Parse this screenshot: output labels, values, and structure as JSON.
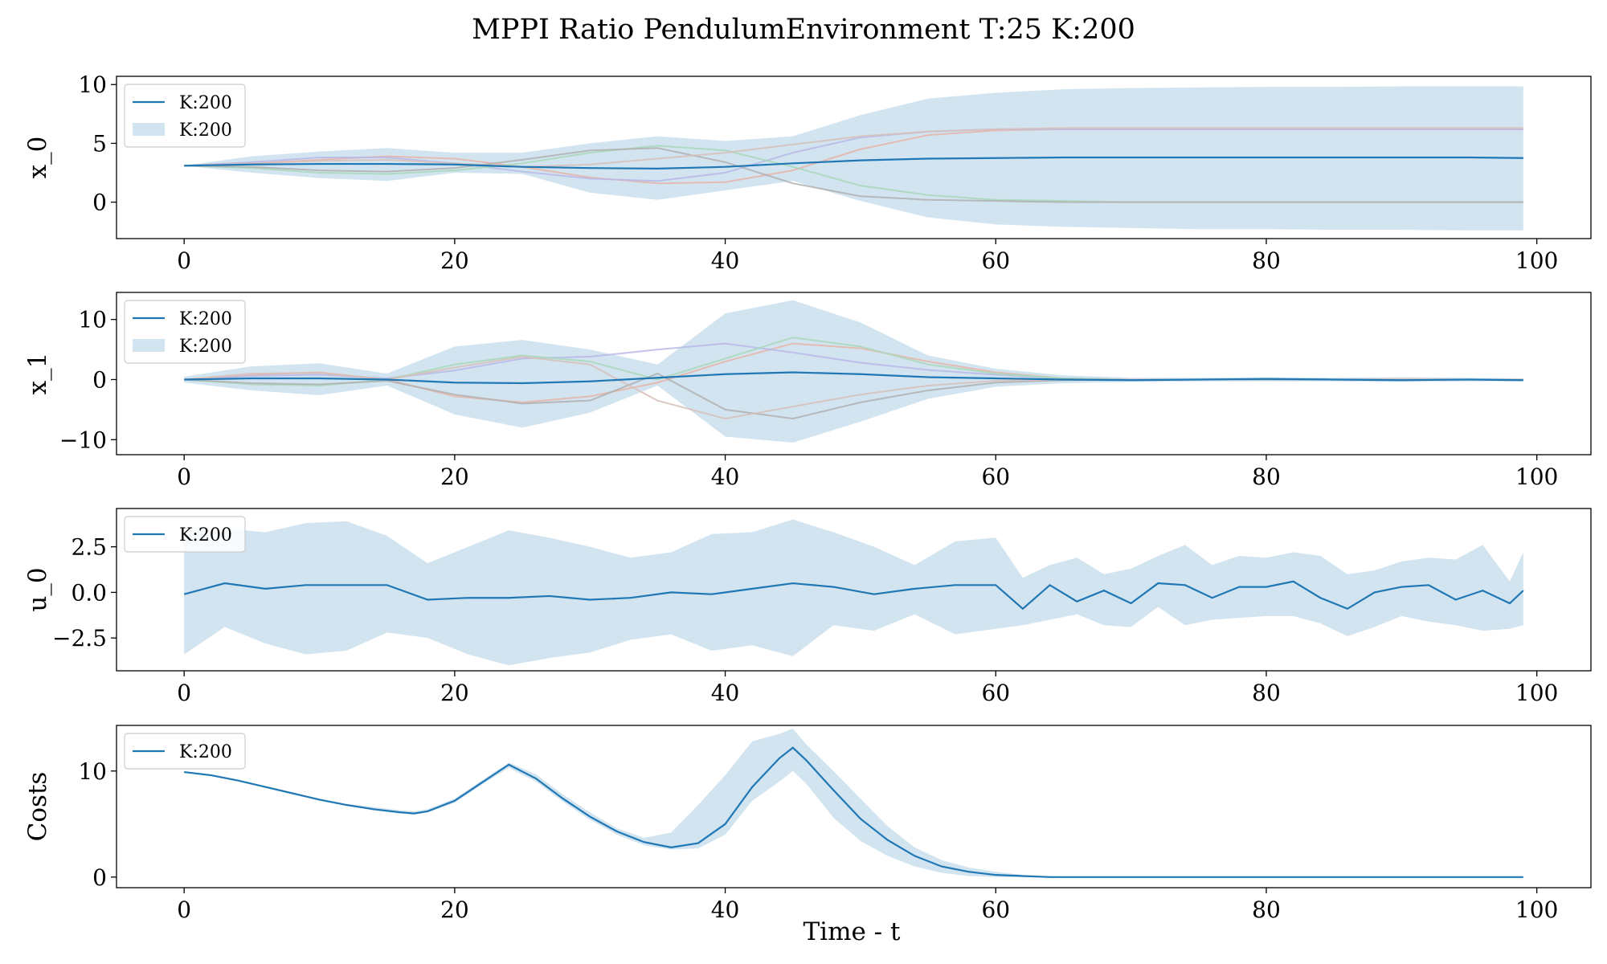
{
  "figure": {
    "title": "MPPI Ratio PendulumEnvironment T:25 K:200",
    "xlabel": "Time - t"
  },
  "colors": {
    "mean_line": "#1f77b4",
    "band": "#1f77b4",
    "trajectories": [
      "#e8b4a8",
      "#b8b8e8",
      "#a8d8b8",
      "#b0b0b0",
      "#d8c0b8"
    ]
  },
  "chart_data": [
    {
      "type": "line",
      "ylabel": "x_0",
      "xlim": [
        -5,
        104
      ],
      "ylim": [
        -3.1,
        10.7
      ],
      "xticks": [
        0,
        20,
        40,
        60,
        80,
        100
      ],
      "yticks": [
        0,
        5,
        10
      ],
      "grid": false,
      "legend": {
        "placement": "upper-left",
        "entries": [
          {
            "kind": "line",
            "label": "K:200"
          },
          {
            "kind": "band",
            "label": "K:200"
          }
        ]
      },
      "series": [
        {
          "name": "K:200",
          "x": [
            0,
            5,
            10,
            15,
            20,
            25,
            30,
            35,
            40,
            45,
            50,
            55,
            60,
            65,
            70,
            75,
            80,
            85,
            90,
            95,
            99
          ],
          "mean": [
            3.1,
            3.2,
            3.25,
            3.25,
            3.2,
            3.0,
            2.9,
            2.85,
            3.0,
            3.3,
            3.55,
            3.7,
            3.75,
            3.8,
            3.8,
            3.8,
            3.8,
            3.8,
            3.8,
            3.8,
            3.75
          ],
          "lower": [
            3.1,
            2.5,
            2.05,
            1.8,
            2.5,
            2.4,
            0.8,
            0.2,
            1.0,
            1.8,
            0.1,
            -1.3,
            -1.9,
            -2.1,
            -2.2,
            -2.3,
            -2.3,
            -2.35,
            -2.35,
            -2.4,
            -2.4
          ],
          "upper": [
            3.1,
            3.9,
            4.3,
            4.6,
            4.2,
            4.2,
            5.0,
            5.6,
            5.2,
            5.6,
            7.4,
            8.8,
            9.3,
            9.6,
            9.7,
            9.75,
            9.8,
            9.8,
            9.85,
            9.85,
            9.85
          ]
        }
      ],
      "trajectories": [
        [
          3.1,
          3.3,
          3.6,
          3.9,
          3.7,
          3.0,
          2.1,
          1.6,
          1.7,
          2.7,
          4.5,
          5.7,
          6.1,
          6.2,
          6.2,
          6.2,
          6.2,
          6.2,
          6.2,
          6.2,
          6.2
        ],
        [
          3.1,
          3.4,
          3.8,
          3.8,
          3.3,
          2.6,
          2.0,
          1.8,
          2.5,
          4.2,
          5.5,
          6.0,
          6.2,
          6.2,
          6.2,
          6.2,
          6.2,
          6.2,
          6.2,
          6.2,
          6.2
        ],
        [
          3.1,
          2.9,
          2.5,
          2.4,
          2.7,
          3.3,
          4.2,
          4.8,
          4.4,
          3.0,
          1.4,
          0.6,
          0.2,
          0.1,
          0.0,
          0.0,
          0.0,
          0.0,
          0.0,
          0.0,
          0.0
        ],
        [
          3.1,
          3.0,
          2.7,
          2.6,
          2.9,
          3.6,
          4.4,
          4.6,
          3.4,
          1.6,
          0.5,
          0.2,
          0.1,
          0.0,
          0.0,
          0.0,
          0.0,
          0.0,
          0.0,
          0.0,
          0.0
        ],
        [
          3.1,
          3.3,
          3.5,
          3.6,
          3.3,
          3.0,
          3.2,
          3.7,
          4.2,
          4.9,
          5.6,
          6.0,
          6.2,
          6.3,
          6.3,
          6.3,
          6.3,
          6.3,
          6.3,
          6.3,
          6.3
        ]
      ]
    },
    {
      "type": "line",
      "ylabel": "x_1",
      "xlim": [
        -5,
        104
      ],
      "ylim": [
        -12.5,
        14.5
      ],
      "xticks": [
        0,
        20,
        40,
        60,
        80,
        100
      ],
      "yticks": [
        -10,
        0,
        10
      ],
      "grid": false,
      "legend": {
        "placement": "upper-left",
        "entries": [
          {
            "kind": "line",
            "label": "K:200"
          },
          {
            "kind": "band",
            "label": "K:200"
          }
        ]
      },
      "series": [
        {
          "name": "K:200",
          "x": [
            0,
            5,
            10,
            15,
            20,
            25,
            30,
            35,
            40,
            45,
            50,
            55,
            60,
            65,
            70,
            75,
            80,
            85,
            90,
            95,
            99
          ],
          "mean": [
            0.0,
            0.2,
            0.2,
            0.0,
            -0.5,
            -0.6,
            -0.3,
            0.3,
            0.9,
            1.2,
            0.9,
            0.4,
            0.2,
            0.0,
            -0.1,
            0.0,
            0.1,
            0.0,
            -0.1,
            0.0,
            -0.1
          ],
          "lower": [
            -0.5,
            -1.8,
            -2.6,
            -1.0,
            -5.8,
            -8.0,
            -5.5,
            -1.0,
            -9.5,
            -10.5,
            -7.0,
            -3.2,
            -1.2,
            -0.6,
            -0.4,
            -0.3,
            -0.3,
            -0.3,
            -0.4,
            -0.3,
            -0.3
          ],
          "upper": [
            0.5,
            2.2,
            2.7,
            1.0,
            5.5,
            6.6,
            5.0,
            2.5,
            11.0,
            13.2,
            9.5,
            4.0,
            1.8,
            0.7,
            0.3,
            0.3,
            0.4,
            0.3,
            0.4,
            0.3,
            0.2
          ]
        }
      ],
      "trajectories": [
        [
          0.0,
          0.8,
          1.2,
          0.0,
          -2.8,
          -3.8,
          -2.8,
          -0.5,
          3.0,
          6.0,
          5.2,
          3.0,
          1.2,
          0.2,
          0.0,
          0.0,
          0.0,
          0.0,
          0.0,
          0.0,
          0.0
        ],
        [
          0.0,
          0.6,
          0.8,
          0.2,
          1.5,
          3.5,
          3.8,
          5.0,
          6.0,
          4.5,
          2.8,
          1.6,
          0.8,
          0.2,
          0.0,
          0.0,
          0.0,
          0.0,
          0.0,
          0.0,
          0.0
        ],
        [
          0.0,
          -0.8,
          -1.0,
          0.0,
          2.5,
          4.0,
          3.0,
          0.0,
          3.5,
          7.0,
          5.5,
          2.5,
          1.0,
          0.2,
          0.0,
          0.0,
          0.0,
          0.0,
          0.0,
          0.0,
          0.0
        ],
        [
          0.0,
          -0.6,
          -0.8,
          -0.2,
          -2.5,
          -4.0,
          -3.5,
          1.0,
          -5.0,
          -6.5,
          -3.8,
          -1.8,
          -0.5,
          -0.1,
          0.0,
          0.0,
          0.0,
          0.0,
          0.0,
          0.0,
          0.0
        ],
        [
          0.0,
          1.0,
          1.1,
          0.0,
          2.0,
          3.8,
          2.5,
          -3.5,
          -6.5,
          -4.5,
          -2.5,
          -1.0,
          -0.2,
          0.0,
          0.0,
          0.0,
          0.1,
          0.0,
          0.1,
          0.0,
          0.0
        ]
      ]
    },
    {
      "type": "line",
      "ylabel": "u_0",
      "xlim": [
        -5,
        104
      ],
      "ylim": [
        -4.3,
        4.6
      ],
      "xticks": [
        0,
        20,
        40,
        60,
        80,
        100
      ],
      "yticks": [
        -2.5,
        0.0,
        2.5
      ],
      "ytick_labels": [
        "−2.5",
        "0.0",
        "2.5"
      ],
      "grid": false,
      "legend": {
        "placement": "upper-left",
        "entries": [
          {
            "kind": "line",
            "label": "K:200"
          }
        ]
      },
      "series": [
        {
          "name": "K:200",
          "x": [
            0,
            3,
            6,
            9,
            12,
            15,
            18,
            21,
            24,
            27,
            30,
            33,
            36,
            39,
            42,
            45,
            48,
            51,
            54,
            57,
            60,
            62,
            64,
            66,
            68,
            70,
            72,
            74,
            76,
            78,
            80,
            82,
            84,
            86,
            88,
            90,
            92,
            94,
            96,
            98,
            99
          ],
          "mean": [
            -0.1,
            0.5,
            0.2,
            0.4,
            0.4,
            0.4,
            -0.4,
            -0.3,
            -0.3,
            -0.2,
            -0.4,
            -0.3,
            0.0,
            -0.1,
            0.2,
            0.5,
            0.3,
            -0.1,
            0.2,
            0.4,
            0.4,
            -0.9,
            0.4,
            -0.5,
            0.1,
            -0.6,
            0.5,
            0.4,
            -0.3,
            0.3,
            0.3,
            0.6,
            -0.3,
            -0.9,
            0.0,
            0.3,
            0.4,
            -0.4,
            0.1,
            -0.6,
            0.1
          ],
          "lower": [
            -3.4,
            -1.9,
            -2.8,
            -3.4,
            -3.2,
            -2.2,
            -2.5,
            -3.4,
            -4.0,
            -3.6,
            -3.3,
            -2.6,
            -2.3,
            -3.2,
            -2.9,
            -3.5,
            -1.8,
            -2.1,
            -1.2,
            -2.3,
            -2.0,
            -1.8,
            -1.5,
            -1.2,
            -1.8,
            -1.9,
            -0.8,
            -1.8,
            -1.5,
            -1.4,
            -1.3,
            -1.3,
            -1.7,
            -2.4,
            -1.9,
            -1.3,
            -1.6,
            -1.8,
            -2.1,
            -2.0,
            -1.8
          ],
          "upper": [
            3.4,
            3.5,
            3.3,
            3.8,
            3.9,
            3.1,
            1.6,
            2.5,
            3.4,
            3.0,
            2.5,
            1.9,
            2.2,
            3.2,
            3.3,
            4.0,
            3.3,
            2.5,
            1.5,
            2.8,
            3.0,
            0.8,
            1.5,
            1.9,
            1.0,
            1.3,
            2.0,
            2.6,
            1.5,
            2.0,
            1.9,
            2.2,
            2.0,
            1.0,
            1.2,
            1.7,
            1.9,
            1.8,
            2.6,
            0.6,
            2.2
          ]
        }
      ],
      "trajectories": []
    },
    {
      "type": "line",
      "ylabel": "Costs",
      "xlabel": "Time - t",
      "xlim": [
        -5,
        104
      ],
      "ylim": [
        -1.0,
        14.3
      ],
      "xticks": [
        0,
        20,
        40,
        60,
        80,
        100
      ],
      "yticks": [
        0,
        10
      ],
      "grid": false,
      "legend": {
        "placement": "upper-left",
        "entries": [
          {
            "kind": "line",
            "label": "K:200"
          }
        ]
      },
      "series": [
        {
          "name": "K:200",
          "x": [
            0,
            2,
            4,
            6,
            8,
            10,
            12,
            14,
            16,
            17,
            18,
            20,
            22,
            24,
            26,
            28,
            30,
            32,
            34,
            36,
            38,
            40,
            42,
            44,
            45,
            46,
            48,
            50,
            52,
            54,
            56,
            58,
            60,
            62,
            64,
            66,
            70,
            80,
            90,
            99
          ],
          "mean": [
            9.9,
            9.6,
            9.1,
            8.5,
            7.9,
            7.3,
            6.8,
            6.4,
            6.1,
            6.0,
            6.2,
            7.2,
            8.9,
            10.6,
            9.3,
            7.4,
            5.7,
            4.3,
            3.3,
            2.8,
            3.2,
            5.0,
            8.5,
            11.2,
            12.2,
            11.0,
            8.2,
            5.5,
            3.5,
            2.0,
            1.0,
            0.5,
            0.2,
            0.1,
            0.0,
            0.0,
            0.0,
            0.0,
            0.0,
            0.0
          ],
          "lower": [
            9.9,
            9.6,
            9.1,
            8.5,
            7.9,
            7.3,
            6.8,
            6.3,
            6.0,
            5.9,
            6.1,
            7.0,
            8.7,
            10.3,
            9.0,
            7.1,
            5.4,
            4.0,
            3.0,
            2.6,
            2.7,
            4.0,
            7.2,
            9.0,
            10.0,
            8.8,
            5.6,
            3.4,
            2.0,
            1.0,
            0.4,
            0.1,
            0.0,
            0.0,
            0.0,
            0.0,
            0.0,
            0.0,
            0.0,
            0.0
          ],
          "upper": [
            9.9,
            9.6,
            9.1,
            8.5,
            7.9,
            7.4,
            6.9,
            6.6,
            6.3,
            6.2,
            6.4,
            7.4,
            9.1,
            10.8,
            9.7,
            7.8,
            6.1,
            4.6,
            3.7,
            4.2,
            6.8,
            9.6,
            12.8,
            13.5,
            14.0,
            12.5,
            10.0,
            7.4,
            4.8,
            2.8,
            1.6,
            0.9,
            0.5,
            0.2,
            0.1,
            0.0,
            0.0,
            0.0,
            0.0,
            0.0
          ]
        }
      ],
      "trajectories": []
    }
  ]
}
